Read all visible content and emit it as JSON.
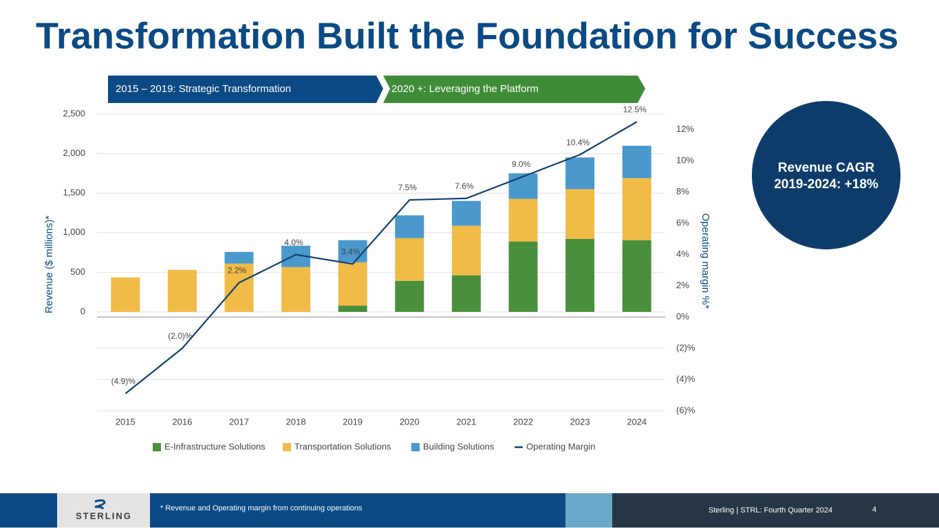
{
  "title": "Transformation Built the Foundation for Success",
  "banner": [
    "2015 – 2019: Strategic Transformation",
    "2020 +: Leveraging the Platform"
  ],
  "callout": [
    "Revenue CAGR",
    "2019-2024: +18%"
  ],
  "chart_data": {
    "type": "bar",
    "stacked": true,
    "categories": [
      "2015",
      "2016",
      "2017",
      "2018",
      "2019",
      "2020",
      "2021",
      "2022",
      "2023",
      "2024"
    ],
    "series": [
      {
        "name": "E-Infrastructure Solutions",
        "color": "#4a8f3c",
        "values": [
          0,
          0,
          0,
          0,
          78,
          392,
          462,
          889,
          923,
          906
        ]
      },
      {
        "name": "Transportation Solutions",
        "color": "#f0bb47",
        "values": [
          435,
          531,
          610,
          566,
          549,
          540,
          627,
          540,
          628,
          784
        ]
      },
      {
        "name": "Building Solutions",
        "color": "#4a98cc",
        "values": [
          0,
          0,
          148,
          270,
          279,
          288,
          313,
          322,
          400,
          409
        ]
      },
      {
        "name": "Operating Margin",
        "type": "line",
        "axis": "y2",
        "color": "#103f72",
        "values": [
          -4.9,
          -2.0,
          2.2,
          4.0,
          3.4,
          7.5,
          7.6,
          9.0,
          10.4,
          12.5
        ],
        "value_labels": [
          "(4.9)%",
          "(2.0)%",
          "2.2%",
          "4.0%",
          "3.4%",
          "7.5%",
          "7.6%",
          "9.0%",
          "10.4%",
          "12.5%"
        ]
      }
    ],
    "ylabel": "Revenue ($ millions)*",
    "y2label": "Operating margin  %*",
    "ylim": [
      -1250,
      2500
    ],
    "yticks": [
      0,
      500,
      {
        "value": 1000,
        "label": "1,000"
      },
      {
        "value": 1500,
        "label": "1,500"
      },
      {
        "value": 2000,
        "label": "2,000"
      },
      {
        "value": 2500,
        "label": "2,500"
      }
    ],
    "y2lim": [
      -6,
      13
    ],
    "y2ticks": [
      {
        "value": -6,
        "label": "(6)%"
      },
      {
        "value": -4,
        "label": "(4)%"
      },
      {
        "value": -2,
        "label": "(2)%"
      },
      {
        "value": 0,
        "label": "0%"
      },
      {
        "value": 2,
        "label": "2%"
      },
      {
        "value": 4,
        "label": "4%"
      },
      {
        "value": 6,
        "label": "6%"
      },
      {
        "value": 8,
        "label": "8%"
      },
      {
        "value": 10,
        "label": "10%"
      },
      {
        "value": 12,
        "label": "12%"
      }
    ],
    "grid": true,
    "legend": "bottom"
  },
  "footer": {
    "logo": "STERLING",
    "note": "* Revenue and Operating margin from continuing operations",
    "source": "Sterling | STRL:  Fourth Quarter 2024",
    "page": "4"
  }
}
